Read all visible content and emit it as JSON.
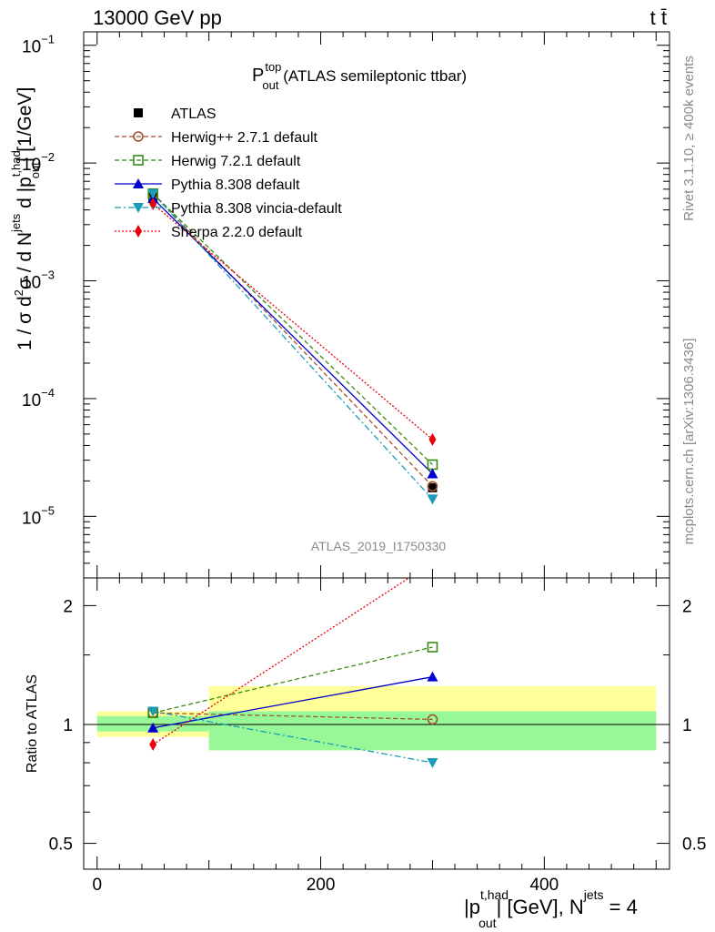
{
  "header": {
    "left": "13000 GeV pp",
    "right": "t t̄"
  },
  "side_labels": {
    "rivet": "Rivet 3.1.10, ≥ 400k events",
    "mcplots": "mcplots.cern.ch [arXiv:1306.3436]"
  },
  "chart_data": [
    {
      "type": "line",
      "panel": "main",
      "title": {
        "main": "P",
        "sup": "top",
        "sub": "out",
        "rest": " (ATLAS semileptonic ttbar)"
      },
      "analysis_label": "ATLAS_2019_I1750330",
      "ylabel": "1 / σ d²σ / d N^jets d |p_out^t,had| [1/GeV]",
      "yscale": "log",
      "ylim": [
        3e-06,
        0.13
      ],
      "xlim": [
        -12,
        512
      ],
      "yticks": [
        {
          "value": 1e-05,
          "base": "10",
          "exp": "−5"
        },
        {
          "value": 0.0001,
          "base": "10",
          "exp": "−4"
        },
        {
          "value": 0.001,
          "base": "10",
          "exp": "−3"
        },
        {
          "value": 0.01,
          "base": "10",
          "exp": "−2"
        },
        {
          "value": 0.1,
          "base": "10",
          "exp": "−1"
        }
      ],
      "legend_position": "top-left",
      "series": [
        {
          "name": "ATLAS",
          "color": "#000000",
          "dash": "",
          "marker": "square",
          "x": [
            50,
            300
          ],
          "y": [
            0.0051,
            1.75e-05
          ],
          "legend_line": false
        },
        {
          "name": "Herwig++ 2.7.1 default",
          "color": "#a0522d",
          "dash": "5,3",
          "marker": "circle-open",
          "x": [
            50,
            300
          ],
          "y": [
            0.0055,
            1.8e-05
          ]
        },
        {
          "name": "Herwig 7.2.1 default",
          "color": "#3a8a14",
          "dash": "5,3",
          "marker": "square-open",
          "x": [
            50,
            300
          ],
          "y": [
            0.0055,
            2.75e-05
          ]
        },
        {
          "name": "Pythia 8.308 default",
          "color": "#0000cc",
          "dash": "",
          "marker": "triangle-up",
          "x": [
            50,
            300
          ],
          "y": [
            0.005,
            2.3e-05
          ]
        },
        {
          "name": "Pythia 8.308 vincia-default",
          "color": "#1a9bb8",
          "dash": "7,3,2,3",
          "marker": "triangle-down",
          "x": [
            50,
            300
          ],
          "y": [
            0.0055,
            1.4e-05
          ]
        },
        {
          "name": "Sherpa 2.2.0 default",
          "color": "#e8000b",
          "dash": "2,2",
          "marker": "diamond",
          "x": [
            50,
            300
          ],
          "y": [
            0.0045,
            4.5e-05
          ]
        }
      ]
    },
    {
      "type": "line",
      "panel": "ratio",
      "ylabel": "Ratio to ATLAS",
      "xlabel": "|p_out^t,had| [GeV], N^jets = 4",
      "yscale": "log",
      "ylim": [
        0.43,
        2.35
      ],
      "xlim": [
        -12,
        512
      ],
      "xticks": [
        0,
        200,
        400
      ],
      "xtick_labels": [
        "0",
        "200",
        "400"
      ],
      "yticks": [
        0.5,
        1,
        2
      ],
      "ytick_labels": [
        "0.5",
        "1",
        "2"
      ],
      "bands": [
        {
          "x0": 0,
          "x1": 100,
          "yellow": [
            0.93,
            1.08
          ],
          "green": [
            0.96,
            1.05
          ]
        },
        {
          "x0": 100,
          "x1": 500,
          "yellow": [
            0.86,
            1.25
          ],
          "green": [
            0.86,
            1.08
          ]
        }
      ],
      "series": [
        {
          "name": "Herwig++ 2.7.1 default",
          "color": "#a0522d",
          "dash": "5,3",
          "marker": "circle-open",
          "x": [
            50,
            300
          ],
          "y": [
            1.07,
            1.03
          ]
        },
        {
          "name": "Herwig 7.2.1 default",
          "color": "#3a8a14",
          "dash": "5,3",
          "marker": "square-open",
          "x": [
            50,
            300
          ],
          "y": [
            1.07,
            1.57
          ]
        },
        {
          "name": "Pythia 8.308 default",
          "color": "#0000cc",
          "dash": "",
          "marker": "triangle-up",
          "x": [
            50,
            300
          ],
          "y": [
            0.98,
            1.32
          ]
        },
        {
          "name": "Pythia 8.308 vincia-default",
          "color": "#1a9bb8",
          "dash": "7,3,2,3",
          "marker": "triangle-down",
          "x": [
            50,
            300
          ],
          "y": [
            1.08,
            0.8
          ]
        },
        {
          "name": "Sherpa 2.2.0 default",
          "color": "#e8000b",
          "dash": "2,2",
          "marker": "diamond",
          "x": [
            50,
            300
          ],
          "y": [
            0.89,
            2.57
          ]
        }
      ]
    }
  ]
}
